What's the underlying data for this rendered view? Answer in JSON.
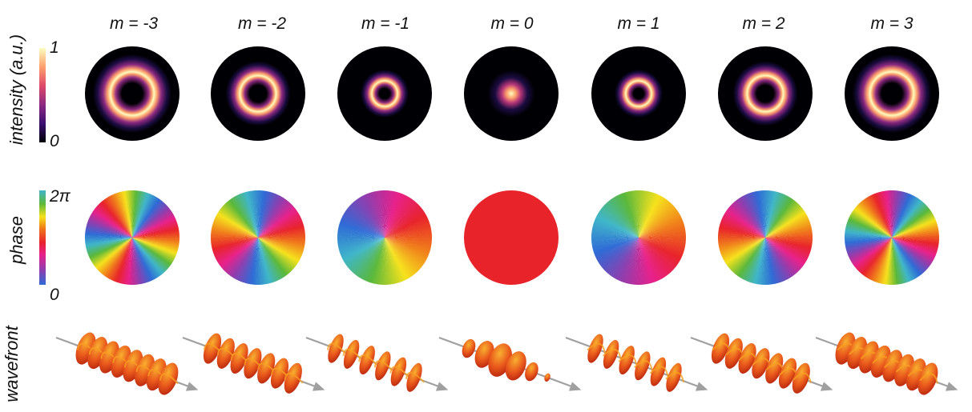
{
  "figure": {
    "column_labels": [
      "m = -3",
      "m = -2",
      "m = -1",
      "m = 0",
      "m = 1",
      "m = 2",
      "m = 3"
    ],
    "m_values": [
      -3,
      -2,
      -1,
      0,
      1,
      2,
      3
    ],
    "rows": {
      "intensity": {
        "label": "intensity (a.u.)",
        "scale_max": "1",
        "scale_min": "0"
      },
      "phase": {
        "label": "phase",
        "scale_max": "2π",
        "scale_min": "0"
      },
      "wavefront": {
        "label": "wavefront"
      }
    },
    "colors": {
      "intensity_colormap": [
        "#000004",
        "#3b0f70",
        "#8c2981",
        "#de4968",
        "#fe9f6d",
        "#fcfdbf"
      ],
      "phase_colormap": [
        "#2e6bd6",
        "#8a3fb0",
        "#e8208a",
        "#e8232a",
        "#f07c1a",
        "#f6e21c",
        "#5ab83a",
        "#3fb6c9",
        "#2e6bd6"
      ],
      "wavefront_fill": "#e8461c",
      "wavefront_highlight": "#f8a020",
      "arrow": "#a0a0a0"
    }
  }
}
